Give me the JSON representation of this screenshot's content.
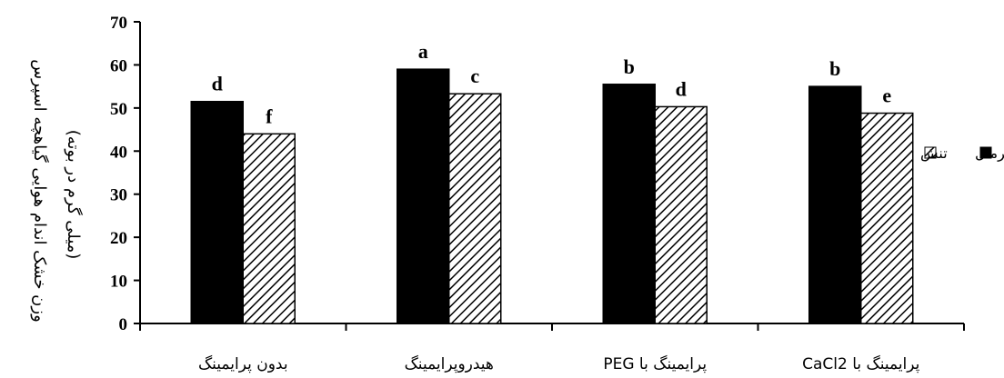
{
  "chart_data": {
    "type": "bar",
    "categories": [
      "بدون پرایمینگ",
      "هیدروپرایمینگ",
      "پرایمینگ با PEG",
      "پرایمینگ با CaCl2"
    ],
    "series": [
      {
        "name": "نرمال",
        "values": [
          51.5,
          59,
          55.5,
          55
        ],
        "letters": [
          "d",
          "a",
          "b",
          "b"
        ],
        "fill": "#000000"
      },
      {
        "name": "تنش",
        "values": [
          44,
          53.3,
          50.3,
          48.8
        ],
        "letters": [
          "f",
          "c",
          "d",
          "e"
        ],
        "fill": "hatch"
      }
    ],
    "ylabel_line1": "وزن خشک اندام هوایی گیاهچه اسپرس",
    "ylabel_line2": "(میلی گرم در بوته)",
    "ylim": [
      0,
      70
    ],
    "yticks": [
      0,
      10,
      20,
      30,
      40,
      50,
      60,
      70
    ],
    "grid": false,
    "legend_position": "right"
  }
}
